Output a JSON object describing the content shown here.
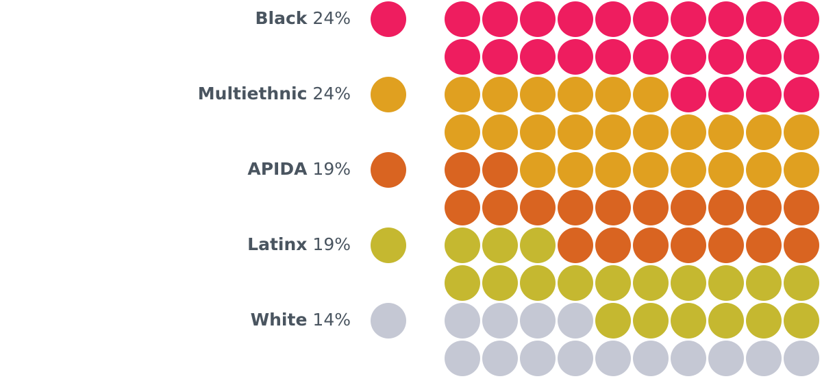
{
  "chart_data": {
    "type": "waffle",
    "categories": [
      "Black",
      "Multiethnic",
      "APIDA",
      "Latinx",
      "White"
    ],
    "values": [
      24,
      24,
      19,
      19,
      14
    ],
    "value_labels": [
      "24%",
      "24%",
      "19%",
      "19%",
      "14%"
    ],
    "colors": [
      "#ee1d5f",
      "#e0a020",
      "#d96421",
      "#c5b830",
      "#c5c8d4"
    ]
  }
}
